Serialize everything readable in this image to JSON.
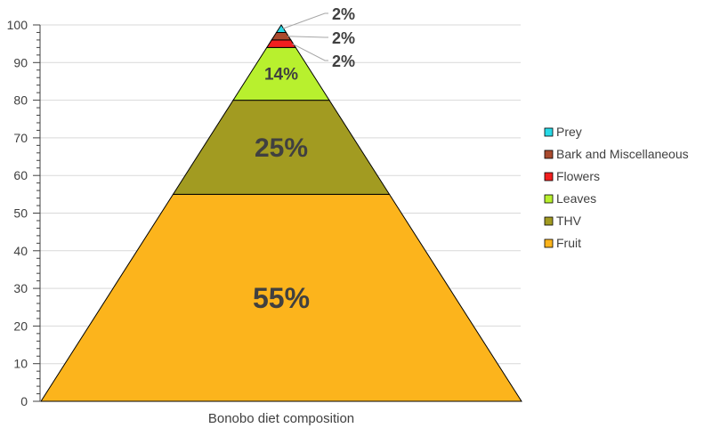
{
  "chart_data": {
    "type": "area",
    "categories": [
      "Bonobo diet composition"
    ],
    "series": [
      {
        "name": "Fruit",
        "value": 55,
        "label": "55%",
        "color": "#FCB41C"
      },
      {
        "name": "THV",
        "value": 25,
        "label": "25%",
        "color": "#A29B21"
      },
      {
        "name": "Leaves",
        "value": 14,
        "label": "14%",
        "color": "#B8F02E"
      },
      {
        "name": "Flowers",
        "value": 2,
        "label": "2%",
        "color": "#F21F1F"
      },
      {
        "name": "Bark and Miscellaneous",
        "value": 2,
        "label": "2%",
        "color": "#A94A2E"
      },
      {
        "name": "Prey",
        "value": 2,
        "label": "2%",
        "color": "#28D9E6"
      }
    ],
    "legend_order": [
      "Prey",
      "Bark and Miscellaneous",
      "Flowers",
      "Leaves",
      "THV",
      "Fruit"
    ],
    "ylim": [
      0,
      100
    ],
    "yticks": [
      "0",
      "10",
      "20",
      "30",
      "40",
      "50",
      "60",
      "70",
      "80",
      "90",
      "100"
    ],
    "grid": true,
    "legend_position": "right"
  }
}
